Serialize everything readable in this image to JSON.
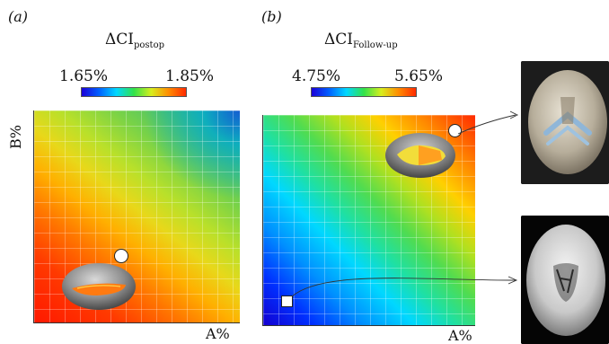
{
  "panel_a": {
    "label": "(a)",
    "title_main": "ΔCI",
    "title_sub": "postop",
    "colorbar_min": "1.65%",
    "colorbar_max": "1.85%",
    "x_axis_label": "A%",
    "y_axis_label": "B%"
  },
  "panel_b": {
    "label": "(b)",
    "title_main": "ΔCI",
    "title_sub": "Follow-up",
    "colorbar_min": "4.75%",
    "colorbar_max": "5.65%",
    "x_axis_label": "A%"
  },
  "colors": {
    "colorbar": [
      "#1b00d8",
      "#0060ff",
      "#00d8ff",
      "#32e24a",
      "#d7ee1e",
      "#ff8c00",
      "#ff2a00"
    ],
    "marker_fill": "#ffffff",
    "marker_stroke": "#222222"
  },
  "icons": {
    "skull_model_a": "skull-model-icon",
    "skull_model_b": "skull-model-icon",
    "skull_photo_top": "skull-photo",
    "skull_photo_bottom": "skull-photo"
  }
}
